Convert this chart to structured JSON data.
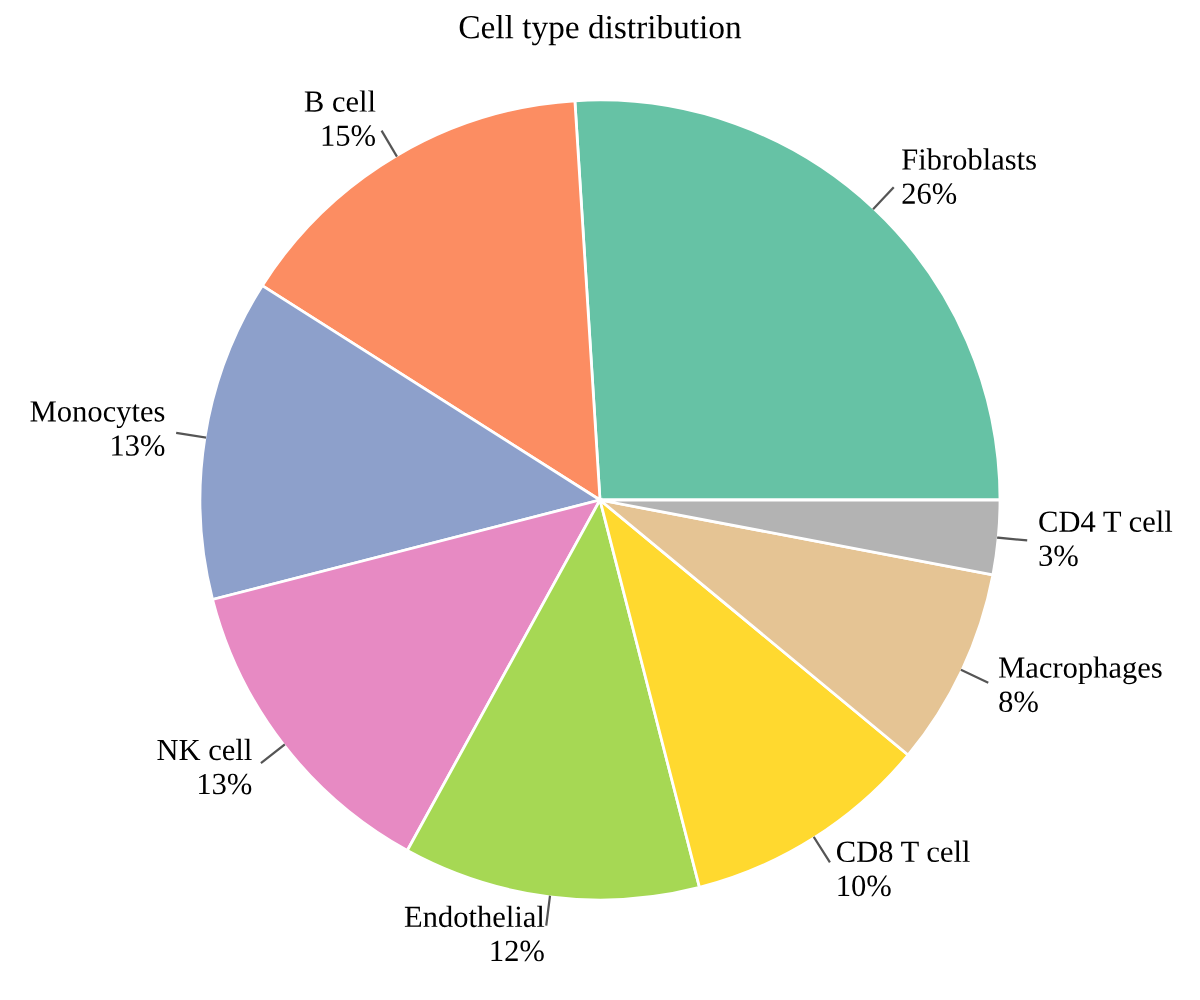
{
  "chart_data": {
    "type": "pie",
    "title": "Cell type distribution",
    "categories": [
      "Fibroblasts",
      "B cell",
      "Monocytes",
      "NK cell",
      "Endothelial",
      "CD8 T cell",
      "Macrophages",
      "CD4 T cell"
    ],
    "values": [
      26,
      15,
      13,
      13,
      12,
      10,
      8,
      3
    ],
    "value_labels": [
      "26%",
      "15%",
      "13%",
      "13%",
      "12%",
      "10%",
      "8%",
      "3%"
    ],
    "colors": [
      "#66c2a5",
      "#fc8d62",
      "#8da0cb",
      "#e78ac3",
      "#a6d854",
      "#ffd92f",
      "#e5c494",
      "#b3b3b3"
    ],
    "legend": false
  }
}
